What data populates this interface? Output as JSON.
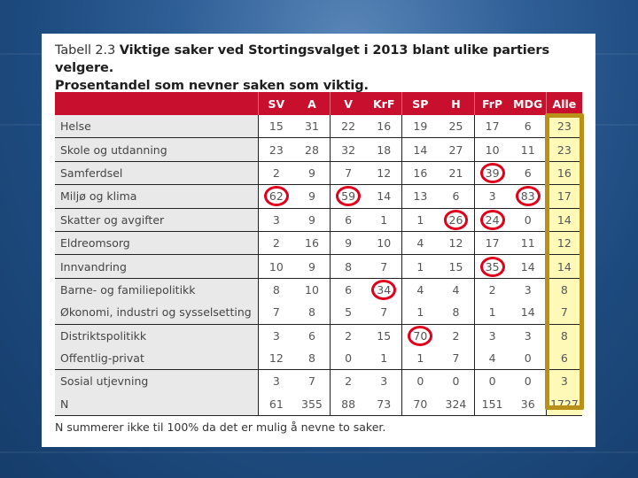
{
  "title": {
    "lead": "Tabell 2.3",
    "bold": "Viktige saker ved Stortingsvalget i 2013 blant ulike partiers velgere.",
    "line2": "Prosentandel som nevner saken som viktig."
  },
  "table": {
    "columns": [
      "SV",
      "A",
      "V",
      "KrF",
      "SP",
      "H",
      "FrP",
      "MDG",
      "Alle"
    ],
    "rows": [
      {
        "label": "Helse",
        "values": [
          "15",
          "31",
          "22",
          "16",
          "19",
          "25",
          "17",
          "6",
          "23"
        ],
        "circled": []
      },
      {
        "label": "Skole og utdanning",
        "values": [
          "23",
          "28",
          "32",
          "18",
          "14",
          "27",
          "10",
          "11",
          "23"
        ],
        "circled": []
      },
      {
        "label": "Samferdsel",
        "values": [
          "2",
          "9",
          "7",
          "12",
          "16",
          "21",
          "39",
          "6",
          "16"
        ],
        "circled": [
          6
        ]
      },
      {
        "label": "Miljø og klima",
        "values": [
          "62",
          "9",
          "59",
          "14",
          "13",
          "6",
          "3",
          "83",
          "17"
        ],
        "circled": [
          0,
          2,
          7
        ]
      },
      {
        "label": "Skatter og avgifter",
        "values": [
          "3",
          "9",
          "6",
          "1",
          "1",
          "26",
          "24",
          "0",
          "14"
        ],
        "circled": [
          5,
          6
        ]
      },
      {
        "label": "Eldreomsorg",
        "values": [
          "2",
          "16",
          "9",
          "10",
          "4",
          "12",
          "17",
          "11",
          "12"
        ],
        "circled": []
      },
      {
        "label": "Innvandring",
        "values": [
          "10",
          "9",
          "8",
          "7",
          "1",
          "15",
          "35",
          "14",
          "14"
        ],
        "circled": [
          6
        ]
      },
      {
        "label": "Barne- og familiepolitikk",
        "values": [
          "8",
          "10",
          "6",
          "34",
          "4",
          "4",
          "2",
          "3",
          "8"
        ],
        "circled": [
          3
        ]
      },
      {
        "label": "Økonomi, industri og sysselsetting",
        "values": [
          "7",
          "8",
          "5",
          "7",
          "1",
          "8",
          "1",
          "14",
          "7"
        ],
        "circled": []
      },
      {
        "label": "Distriktspolitikk",
        "values": [
          "3",
          "6",
          "2",
          "15",
          "70",
          "2",
          "3",
          "3",
          "8"
        ],
        "circled": [
          4
        ]
      },
      {
        "label": "Offentlig-privat",
        "values": [
          "12",
          "8",
          "0",
          "1",
          "1",
          "7",
          "4",
          "0",
          "6"
        ],
        "circled": []
      },
      {
        "label": "Sosial utjevning",
        "values": [
          "3",
          "7",
          "2",
          "3",
          "0",
          "0",
          "0",
          "0",
          "3"
        ],
        "circled": []
      },
      {
        "label": "N",
        "values": [
          "61",
          "355",
          "88",
          "73",
          "70",
          "324",
          "151",
          "36",
          "1727"
        ],
        "circled": []
      }
    ],
    "separator_after_rows": [
      0,
      1,
      2,
      3,
      4,
      5,
      6,
      8,
      10,
      12
    ]
  },
  "footnote": "N summerer ikke til 100% da det er mulig å nevne to saker.",
  "colors": {
    "header_red": "#c8102e",
    "highlight_circle": "#e0001b",
    "alle_box_border": "#b8901a",
    "alle_fill": "#fff9b8",
    "label_bg": "#e9e9e9"
  }
}
